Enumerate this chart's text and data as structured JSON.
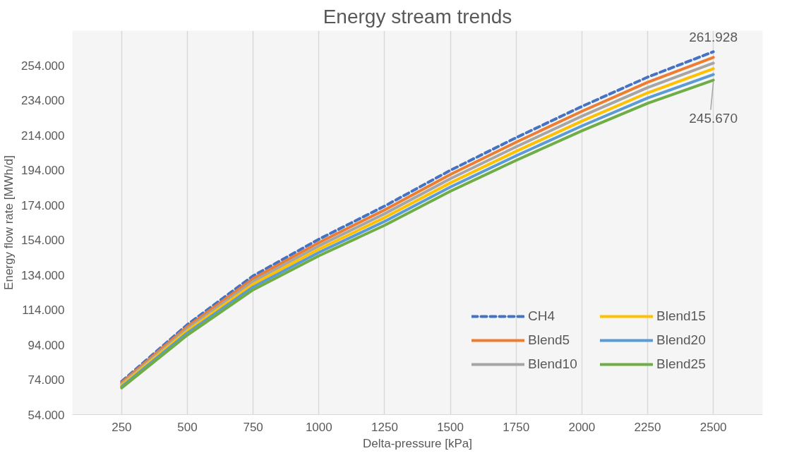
{
  "chart_data": {
    "type": "line",
    "title": "Energy stream trends",
    "xlabel": "Delta-pressure [kPa]",
    "ylabel": "Energy flow rate [MWh/d]",
    "categories": [
      "250",
      "500",
      "750",
      "1000",
      "1250",
      "1500",
      "1750",
      "2000",
      "2250",
      "2500"
    ],
    "series": [
      {
        "name": "CH4",
        "color": "#4472c4",
        "line_style": "dashed",
        "values": [
          73000,
          105600,
          133500,
          154500,
          173500,
          194000,
          212700,
          230600,
          247400,
          261928
        ]
      },
      {
        "name": "Blend5",
        "color": "#ed7d31",
        "values": [
          72300,
          104400,
          131900,
          152600,
          171300,
          191600,
          210100,
          227800,
          244400,
          258700
        ]
      },
      {
        "name": "Blend10",
        "color": "#a5a5a5",
        "values": [
          71500,
          103200,
          130300,
          150700,
          169100,
          189200,
          207500,
          225000,
          241400,
          255400
        ]
      },
      {
        "name": "Blend15",
        "color": "#ffc000",
        "values": [
          70800,
          102000,
          128700,
          148800,
          166900,
          186800,
          204900,
          222200,
          238400,
          252200
        ]
      },
      {
        "name": "Blend20",
        "color": "#5b9bd5",
        "values": [
          70000,
          100800,
          127100,
          146900,
          164700,
          184400,
          202300,
          219400,
          235400,
          248900
        ]
      },
      {
        "name": "Blend25",
        "color": "#70ad47",
        "values": [
          69300,
          99600,
          125500,
          145000,
          162500,
          182000,
          199700,
          216600,
          232400,
          245670
        ]
      }
    ],
    "annotations": [
      {
        "text": "261.928",
        "x": "2500",
        "y": 261928
      },
      {
        "text": "245.670",
        "x": "2500",
        "y": 245670
      }
    ],
    "ylim": [
      54000,
      274000
    ],
    "yticks": [
      {
        "value": 54000,
        "label": "54.000"
      },
      {
        "value": 74000,
        "label": "74.000"
      },
      {
        "value": 94000,
        "label": "94.000"
      },
      {
        "value": 114000,
        "label": "114.000"
      },
      {
        "value": 134000,
        "label": "134.000"
      },
      {
        "value": 154000,
        "label": "154.000"
      },
      {
        "value": 174000,
        "label": "174.000"
      },
      {
        "value": 194000,
        "label": "194.000"
      },
      {
        "value": 214000,
        "label": "214.000"
      },
      {
        "value": 234000,
        "label": "234.000"
      },
      {
        "value": 254000,
        "label": "254.000"
      }
    ],
    "grid": "x",
    "legend": "bottom right",
    "marker": "none"
  }
}
